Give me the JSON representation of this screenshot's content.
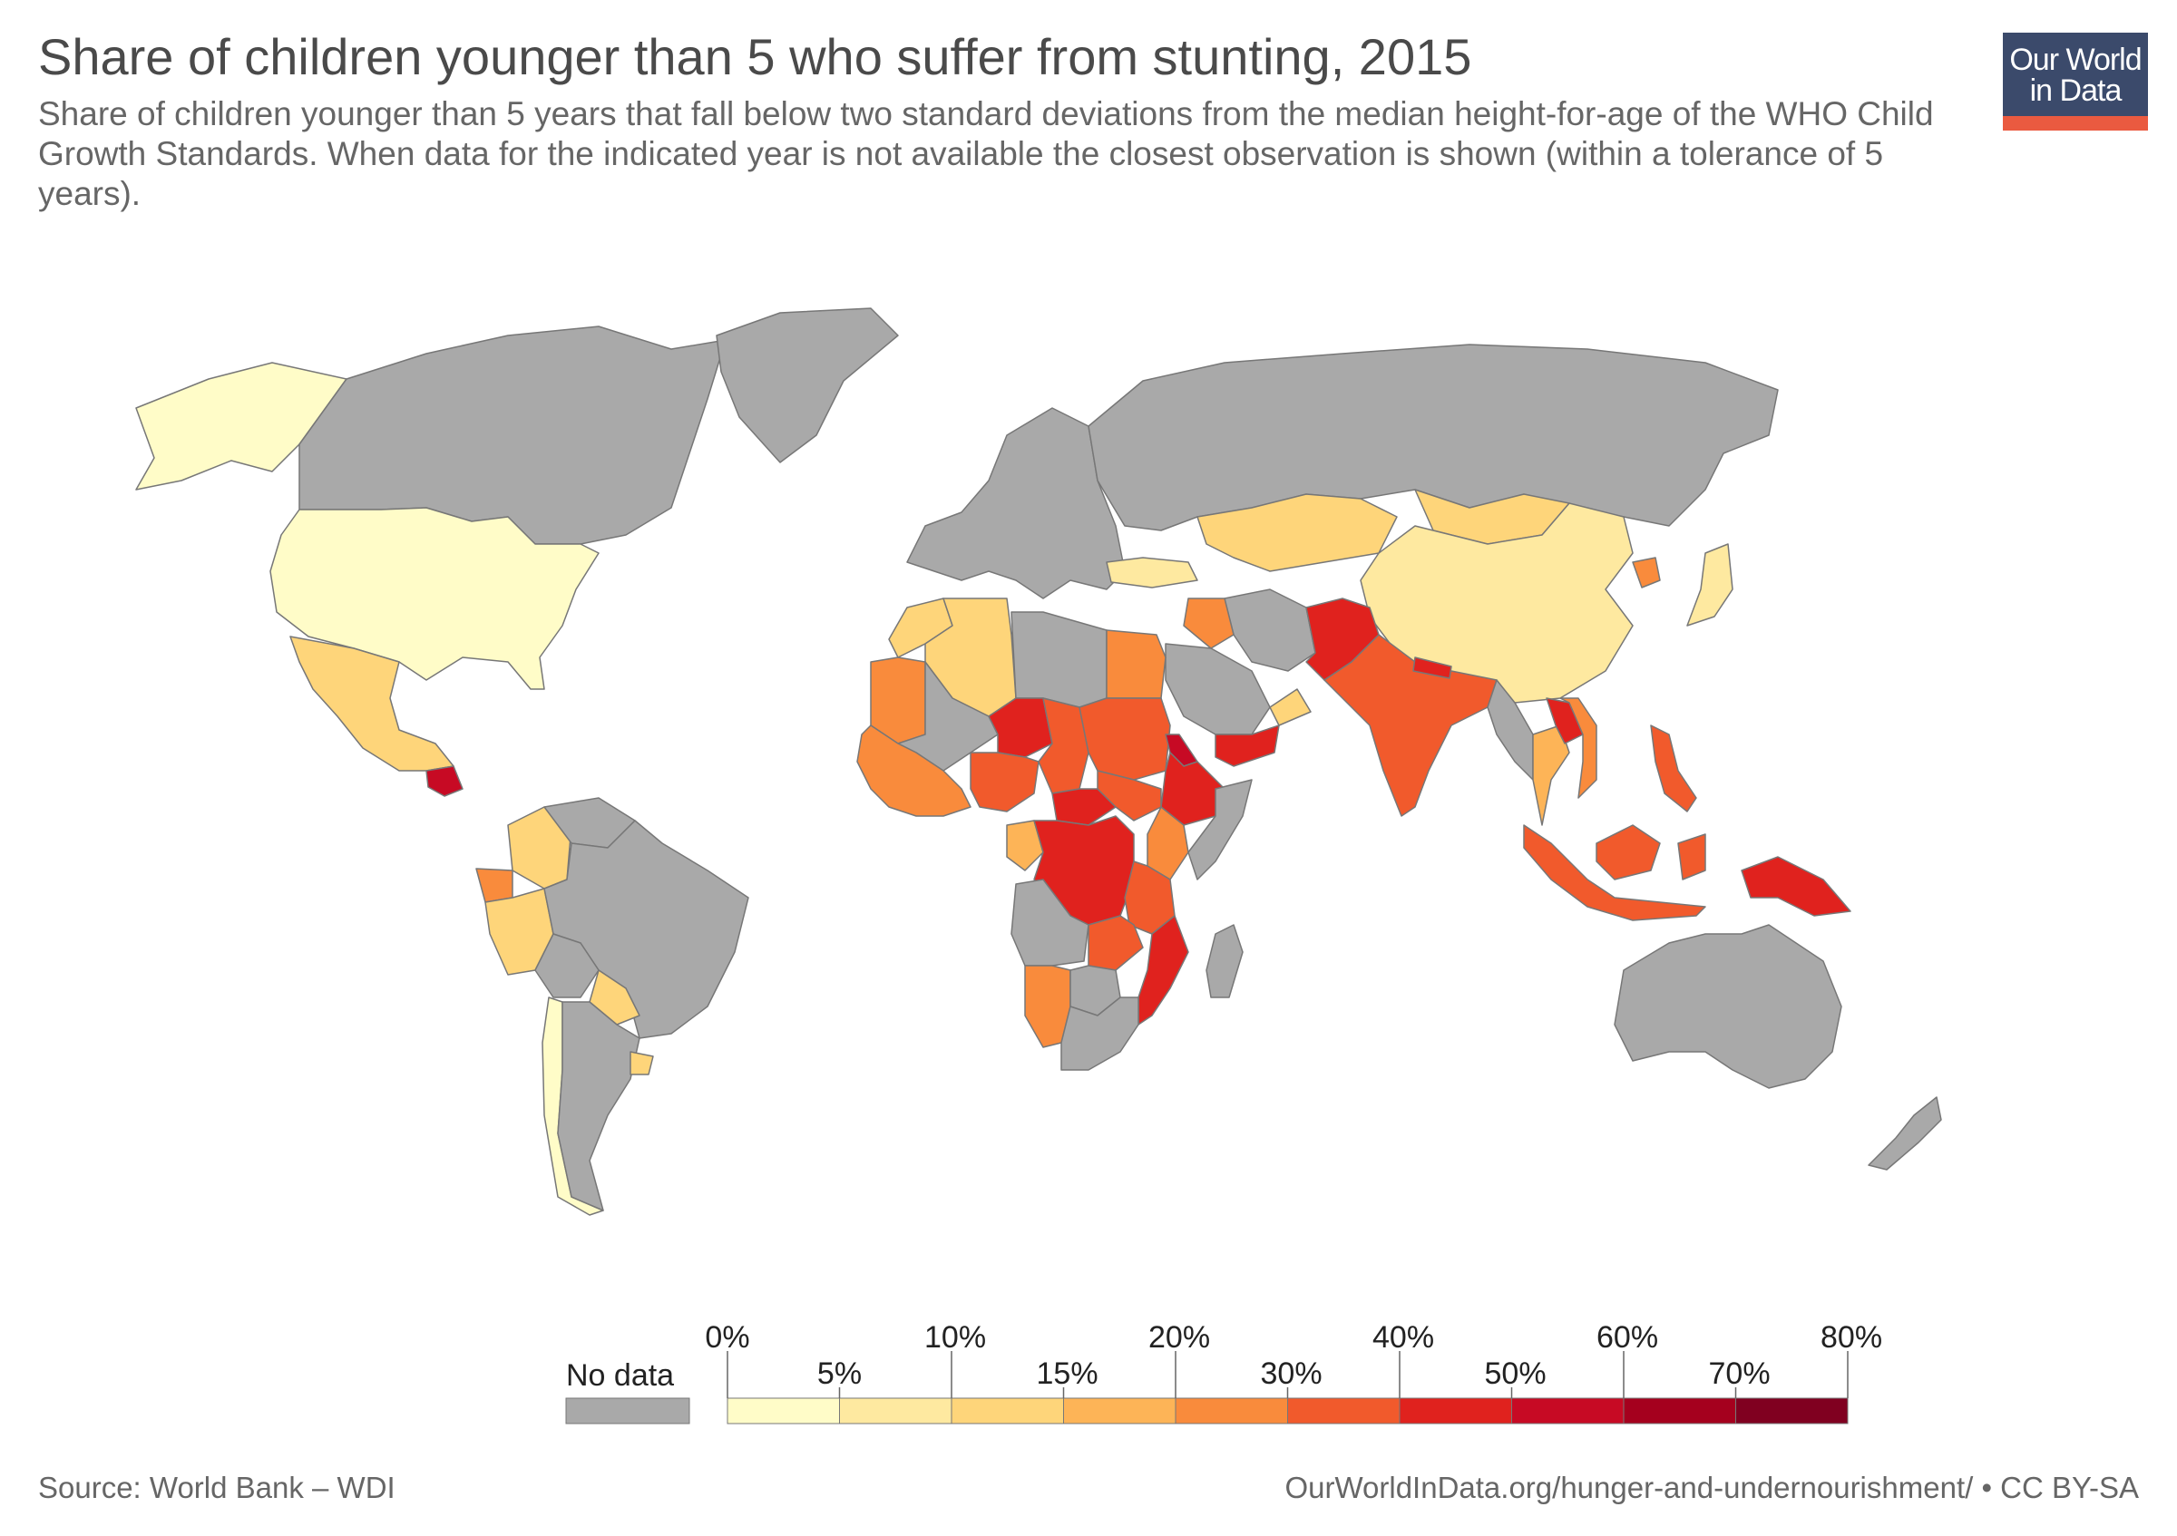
{
  "header": {
    "title": "Share of children younger than 5 who suffer from stunting, 2015",
    "subtitle": "Share of children younger than 5 years that fall below two standard deviations from the median height-for-age of the WHO Child Growth Standards. When data for the indicated year is not available the closest observation is shown (within a tolerance of 5 years)."
  },
  "logo": {
    "line1": "Our World",
    "line2": "in Data"
  },
  "legend": {
    "no_data_label": "No data",
    "no_data_color": "#a9a9a9",
    "bins": [
      {
        "from": 0,
        "to": 5,
        "color": "#fffcc8"
      },
      {
        "from": 5,
        "to": 10,
        "color": "#fee9a0"
      },
      {
        "from": 10,
        "to": 15,
        "color": "#fed57a"
      },
      {
        "from": 15,
        "to": 20,
        "color": "#fdb457"
      },
      {
        "from": 20,
        "to": 30,
        "color": "#f98b3c"
      },
      {
        "from": 30,
        "to": 40,
        "color": "#f15a2c"
      },
      {
        "from": 40,
        "to": 50,
        "color": "#e0221e"
      },
      {
        "from": 50,
        "to": 60,
        "color": "#c70a24"
      },
      {
        "from": 60,
        "to": 70,
        "color": "#a5001e"
      },
      {
        "from": 70,
        "to": 80,
        "color": "#800020"
      }
    ],
    "labels_top": [
      "0%",
      "10%",
      "20%",
      "40%",
      "60%",
      "80%"
    ],
    "labels_bottom": [
      "5%",
      "15%",
      "30%",
      "50%",
      "70%"
    ]
  },
  "footer": {
    "source": "Source: World Bank – WDI",
    "url": "OurWorldInData.org/hunger-and-undernourishment/ • CC BY-SA"
  },
  "map_regions": [
    {
      "name": "Alaska",
      "color": "#fffcc8"
    },
    {
      "name": "Canada",
      "color": "#a9a9a9"
    },
    {
      "name": "Greenland",
      "color": "#a9a9a9"
    },
    {
      "name": "United States",
      "color": "#fffcc8"
    },
    {
      "name": "Mexico",
      "color": "#fed57a"
    },
    {
      "name": "Guatemala",
      "color": "#c70a24"
    },
    {
      "name": "Colombia",
      "color": "#fed57a"
    },
    {
      "name": "Venezuela",
      "color": "#a9a9a9"
    },
    {
      "name": "Ecuador",
      "color": "#f98b3c"
    },
    {
      "name": "Peru",
      "color": "#fed57a"
    },
    {
      "name": "Brazil",
      "color": "#a9a9a9"
    },
    {
      "name": "Bolivia",
      "color": "#a9a9a9"
    },
    {
      "name": "Paraguay",
      "color": "#fed57a"
    },
    {
      "name": "Chile",
      "color": "#fffcc8"
    },
    {
      "name": "Argentina",
      "color": "#a9a9a9"
    },
    {
      "name": "Uruguay",
      "color": "#fed57a"
    },
    {
      "name": "Europe",
      "color": "#a9a9a9"
    },
    {
      "name": "Russia",
      "color": "#a9a9a9"
    },
    {
      "name": "Turkey",
      "color": "#fee9a0"
    },
    {
      "name": "Kazakhstan",
      "color": "#fed57a"
    },
    {
      "name": "Mongolia",
      "color": "#fed57a"
    },
    {
      "name": "China",
      "color": "#fee9a0"
    },
    {
      "name": "Japan",
      "color": "#fee9a0"
    },
    {
      "name": "North Korea",
      "color": "#f98b3c"
    },
    {
      "name": "Iran",
      "color": "#a9a9a9"
    },
    {
      "name": "Iraq",
      "color": "#f98b3c"
    },
    {
      "name": "Saudi Arabia",
      "color": "#a9a9a9"
    },
    {
      "name": "Yemen",
      "color": "#e0221e"
    },
    {
      "name": "Oman",
      "color": "#fed57a"
    },
    {
      "name": "Pakistan",
      "color": "#e0221e"
    },
    {
      "name": "India",
      "color": "#f15a2c"
    },
    {
      "name": "Nepal",
      "color": "#e0221e"
    },
    {
      "name": "Myanmar",
      "color": "#a9a9a9"
    },
    {
      "name": "Thailand",
      "color": "#fdb457"
    },
    {
      "name": "Laos",
      "color": "#e0221e"
    },
    {
      "name": "Vietnam",
      "color": "#f98b3c"
    },
    {
      "name": "Philippines",
      "color": "#f15a2c"
    },
    {
      "name": "Indonesia",
      "color": "#f15a2c"
    },
    {
      "name": "Papua New Guinea",
      "color": "#e0221e"
    },
    {
      "name": "Australia",
      "color": "#a9a9a9"
    },
    {
      "name": "New Zealand",
      "color": "#a9a9a9"
    },
    {
      "name": "Morocco",
      "color": "#fed57a"
    },
    {
      "name": "Algeria",
      "color": "#fed57a"
    },
    {
      "name": "Libya",
      "color": "#a9a9a9"
    },
    {
      "name": "Egypt",
      "color": "#f98b3c"
    },
    {
      "name": "Mauritania",
      "color": "#f98b3c"
    },
    {
      "name": "Mali",
      "color": "#a9a9a9"
    },
    {
      "name": "Niger",
      "color": "#e0221e"
    },
    {
      "name": "Chad",
      "color": "#f15a2c"
    },
    {
      "name": "Sudan",
      "color": "#f15a2c"
    },
    {
      "name": "Eritrea",
      "color": "#c70a24"
    },
    {
      "name": "Ethiopia",
      "color": "#e0221e"
    },
    {
      "name": "Somalia",
      "color": "#a9a9a9"
    },
    {
      "name": "West Africa",
      "color": "#f98b3c"
    },
    {
      "name": "Nigeria",
      "color": "#f15a2c"
    },
    {
      "name": "Central African Republic",
      "color": "#e0221e"
    },
    {
      "name": "South Sudan",
      "color": "#f15a2c"
    },
    {
      "name": "Kenya",
      "color": "#f98b3c"
    },
    {
      "name": "Gabon",
      "color": "#fdb457"
    },
    {
      "name": "DR Congo",
      "color": "#e0221e"
    },
    {
      "name": "Tanzania",
      "color": "#f15a2c"
    },
    {
      "name": "Angola",
      "color": "#a9a9a9"
    },
    {
      "name": "Zambia",
      "color": "#f15a2c"
    },
    {
      "name": "Mozambique",
      "color": "#e0221e"
    },
    {
      "name": "Namibia",
      "color": "#f98b3c"
    },
    {
      "name": "Botswana",
      "color": "#a9a9a9"
    },
    {
      "name": "South Africa",
      "color": "#a9a9a9"
    },
    {
      "name": "Madagascar",
      "color": "#a9a9a9"
    }
  ]
}
